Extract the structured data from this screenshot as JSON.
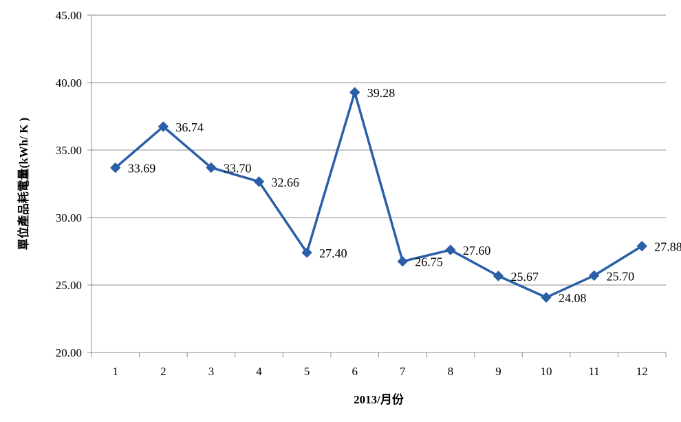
{
  "chart_data": {
    "type": "line",
    "categories": [
      "1",
      "2",
      "3",
      "4",
      "5",
      "6",
      "7",
      "8",
      "9",
      "10",
      "11",
      "12"
    ],
    "series": [
      {
        "values": [
          33.69,
          36.74,
          33.7,
          32.66,
          27.4,
          39.28,
          26.75,
          27.6,
          25.67,
          24.08,
          25.7,
          27.88
        ]
      }
    ],
    "data_labels": [
      "33.69",
      "36.74",
      "33.70",
      "32.66",
      "27.40",
      "39.28",
      "26.75",
      "27.60",
      "25.67",
      "24.08",
      "25.70",
      "27.88"
    ],
    "xlabel": "2013/月份",
    "ylabel": "單位產品耗電量(kWh/ K )",
    "ylim": [
      20,
      45
    ],
    "yticks": [
      20,
      25,
      30,
      35,
      40,
      45
    ],
    "ytick_labels": [
      "20.00",
      "25.00",
      "30.00",
      "35.00",
      "40.00",
      "45.00"
    ],
    "grid": "horizontal",
    "legend": "none",
    "line_color": "#2a5fa8",
    "marker": "diamond"
  }
}
